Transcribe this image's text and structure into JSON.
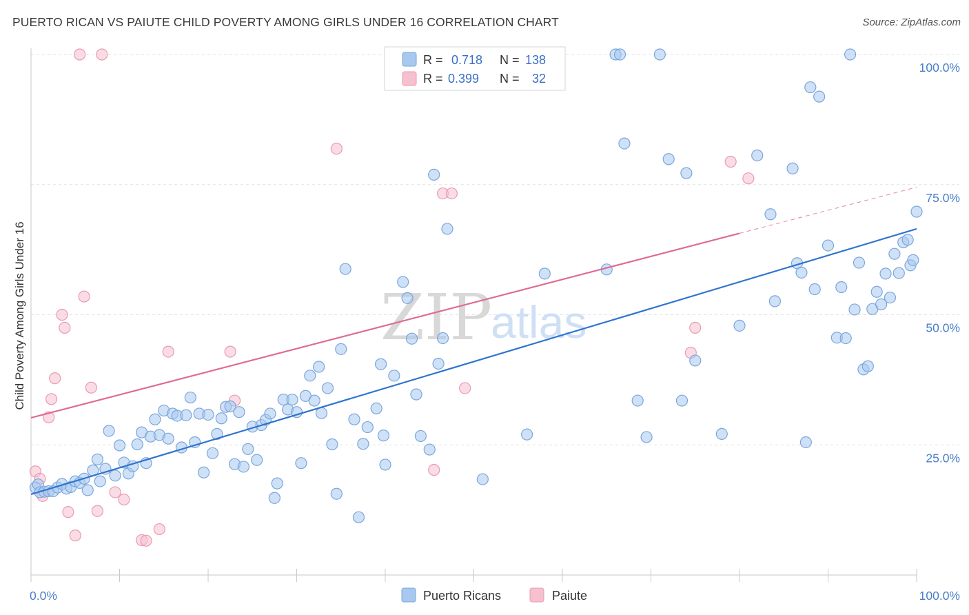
{
  "title": "PUERTO RICAN VS PAIUTE CHILD POVERTY AMONG GIRLS UNDER 16 CORRELATION CHART",
  "source": "Source: ZipAtlas.com",
  "watermark": {
    "part1": "ZIP",
    "part2": "atlas"
  },
  "colors": {
    "blue_fill": "#a8c8f0",
    "blue_stroke": "#7aa6dc",
    "blue_line": "#2f74d0",
    "pink_fill": "#f6c0cf",
    "pink_stroke": "#eb9ab2",
    "pink_line": "#e06a93",
    "tick_text": "#4a7ec8",
    "grid": "#e2e2e2"
  },
  "legend": {
    "rows": [
      {
        "r_label": "R =",
        "r_value": "0.718",
        "n_label": "N =",
        "n_value": "138",
        "color": "blue"
      },
      {
        "r_label": "R =",
        "r_value": "0.399",
        "n_label": "N =",
        "n_value": "32",
        "color": "pink"
      }
    ]
  },
  "bottom_legend": [
    {
      "label": "Puerto Ricans",
      "color": "blue"
    },
    {
      "label": "Paiute",
      "color": "pink"
    }
  ],
  "chart_data": {
    "type": "scatter",
    "title": "PUERTO RICAN VS PAIUTE CHILD POVERTY AMONG GIRLS UNDER 16 CORRELATION CHART",
    "xlabel": "",
    "ylabel": "Child Poverty Among Girls Under 16",
    "xlim": [
      0,
      100
    ],
    "ylim": [
      0,
      100
    ],
    "x_tick_labels": [
      "0.0%",
      "100.0%"
    ],
    "y_tick_labels": [
      {
        "value": 25,
        "label": "25.0%"
      },
      {
        "value": 50,
        "label": "50.0%"
      },
      {
        "value": 75,
        "label": "75.0%"
      },
      {
        "value": 100,
        "label": "100.0%"
      }
    ],
    "grid": "horizontal dashed",
    "legend_placement": "top-center",
    "series": [
      {
        "name": "Puerto Ricans",
        "color": "blue",
        "r": 0.718,
        "n": 138,
        "trend": {
          "x": [
            0,
            100
          ],
          "y": [
            15.5,
            66.5
          ],
          "dashed_from": null
        },
        "points": [
          [
            0.5,
            16.8
          ],
          [
            0.8,
            17.4
          ],
          [
            1.0,
            15.9
          ],
          [
            1.5,
            16.0
          ],
          [
            2.0,
            16.1
          ],
          [
            2.5,
            16.1
          ],
          [
            3.0,
            16.8
          ],
          [
            3.5,
            17.5
          ],
          [
            4.0,
            16.6
          ],
          [
            4.5,
            16.9
          ],
          [
            5.0,
            18.0
          ],
          [
            5.5,
            17.7
          ],
          [
            6.0,
            18.5
          ],
          [
            6.4,
            16.3
          ],
          [
            7.0,
            20.1
          ],
          [
            7.5,
            22.2
          ],
          [
            7.8,
            18.0
          ],
          [
            8.4,
            20.4
          ],
          [
            8.8,
            27.7
          ],
          [
            9.5,
            19.1
          ],
          [
            10.0,
            24.9
          ],
          [
            10.5,
            21.6
          ],
          [
            11.0,
            19.5
          ],
          [
            11.5,
            20.9
          ],
          [
            12.0,
            25.1
          ],
          [
            12.5,
            27.4
          ],
          [
            13.0,
            21.5
          ],
          [
            13.5,
            26.6
          ],
          [
            14.0,
            29.9
          ],
          [
            14.5,
            26.9
          ],
          [
            15.0,
            31.6
          ],
          [
            15.5,
            26.2
          ],
          [
            16.0,
            31.0
          ],
          [
            16.5,
            30.6
          ],
          [
            17.0,
            24.5
          ],
          [
            17.5,
            30.7
          ],
          [
            18.0,
            34.1
          ],
          [
            18.5,
            25.5
          ],
          [
            19.0,
            31.0
          ],
          [
            19.5,
            19.7
          ],
          [
            20.0,
            30.8
          ],
          [
            20.5,
            23.4
          ],
          [
            21.0,
            27.1
          ],
          [
            21.5,
            30.1
          ],
          [
            22.0,
            32.3
          ],
          [
            22.5,
            32.4
          ],
          [
            23.0,
            21.3
          ],
          [
            23.5,
            31.3
          ],
          [
            24.0,
            20.8
          ],
          [
            24.5,
            24.2
          ],
          [
            25.0,
            28.5
          ],
          [
            25.5,
            22.1
          ],
          [
            26.0,
            28.8
          ],
          [
            26.5,
            29.8
          ],
          [
            27.0,
            31.0
          ],
          [
            27.5,
            14.8
          ],
          [
            27.8,
            17.6
          ],
          [
            28.5,
            33.7
          ],
          [
            29.0,
            31.8
          ],
          [
            29.5,
            33.7
          ],
          [
            30.0,
            31.3
          ],
          [
            30.5,
            21.5
          ],
          [
            31.0,
            34.4
          ],
          [
            31.5,
            38.3
          ],
          [
            32.0,
            33.5
          ],
          [
            32.5,
            40.0
          ],
          [
            32.8,
            31.1
          ],
          [
            33.5,
            35.9
          ],
          [
            34.0,
            25.1
          ],
          [
            34.5,
            15.6
          ],
          [
            35.0,
            43.4
          ],
          [
            35.5,
            58.8
          ],
          [
            36.5,
            29.9
          ],
          [
            37.0,
            11.1
          ],
          [
            37.5,
            25.2
          ],
          [
            38.0,
            28.4
          ],
          [
            39.0,
            32.0
          ],
          [
            39.5,
            40.5
          ],
          [
            39.8,
            26.8
          ],
          [
            40.0,
            21.2
          ],
          [
            41.0,
            38.3
          ],
          [
            42.0,
            56.3
          ],
          [
            42.5,
            53.2
          ],
          [
            43.0,
            45.4
          ],
          [
            43.5,
            34.7
          ],
          [
            44.0,
            26.7
          ],
          [
            45.0,
            24.1
          ],
          [
            45.5,
            76.9
          ],
          [
            46.0,
            40.6
          ],
          [
            46.5,
            45.5
          ],
          [
            47.0,
            66.5
          ],
          [
            51.0,
            18.4
          ],
          [
            56.0,
            27.0
          ],
          [
            58.0,
            57.9
          ],
          [
            65.0,
            58.7
          ],
          [
            66.0,
            100.0
          ],
          [
            66.5,
            100.0
          ],
          [
            67.0,
            82.9
          ],
          [
            68.5,
            33.5
          ],
          [
            69.5,
            26.5
          ],
          [
            71.0,
            100.0
          ],
          [
            72.0,
            79.9
          ],
          [
            73.5,
            33.5
          ],
          [
            74.0,
            77.2
          ],
          [
            75.0,
            41.2
          ],
          [
            78.0,
            27.1
          ],
          [
            80.0,
            47.9
          ],
          [
            82.0,
            80.6
          ],
          [
            83.5,
            69.3
          ],
          [
            84.0,
            52.6
          ],
          [
            86.0,
            78.1
          ],
          [
            86.5,
            59.9
          ],
          [
            87.0,
            58.1
          ],
          [
            87.5,
            25.5
          ],
          [
            88.0,
            93.7
          ],
          [
            88.5,
            54.9
          ],
          [
            89.0,
            91.9
          ],
          [
            90.0,
            63.3
          ],
          [
            91.0,
            45.6
          ],
          [
            91.5,
            55.3
          ],
          [
            92.0,
            45.5
          ],
          [
            92.5,
            100.0
          ],
          [
            93.0,
            51.0
          ],
          [
            93.5,
            60.0
          ],
          [
            94.0,
            39.5
          ],
          [
            94.5,
            40.1
          ],
          [
            95.0,
            51.1
          ],
          [
            95.5,
            54.4
          ],
          [
            96.0,
            52.0
          ],
          [
            96.5,
            57.9
          ],
          [
            97.0,
            53.3
          ],
          [
            97.5,
            61.7
          ],
          [
            98.0,
            58.0
          ],
          [
            98.5,
            63.9
          ],
          [
            99.0,
            64.4
          ],
          [
            99.3,
            59.5
          ],
          [
            99.6,
            60.5
          ],
          [
            100.0,
            69.8
          ]
        ]
      },
      {
        "name": "Paiute",
        "color": "pink",
        "r": 0.399,
        "n": 32,
        "trend": {
          "x": [
            0,
            100
          ],
          "y": [
            30.2,
            74.5
          ],
          "solid_until_x": 80
        },
        "points": [
          [
            0.5,
            19.9
          ],
          [
            1.0,
            18.5
          ],
          [
            1.3,
            15.2
          ],
          [
            2.0,
            30.3
          ],
          [
            2.3,
            33.8
          ],
          [
            2.7,
            37.8
          ],
          [
            3.5,
            50.0
          ],
          [
            3.8,
            47.5
          ],
          [
            4.2,
            12.1
          ],
          [
            5.0,
            7.6
          ],
          [
            5.5,
            100.0
          ],
          [
            6.0,
            53.5
          ],
          [
            6.8,
            36.0
          ],
          [
            7.5,
            12.3
          ],
          [
            8.0,
            100.0
          ],
          [
            9.5,
            15.9
          ],
          [
            10.5,
            14.5
          ],
          [
            12.5,
            6.7
          ],
          [
            13.0,
            6.6
          ],
          [
            14.5,
            8.8
          ],
          [
            15.5,
            42.9
          ],
          [
            22.5,
            42.9
          ],
          [
            23.0,
            33.5
          ],
          [
            34.5,
            81.9
          ],
          [
            45.5,
            20.2
          ],
          [
            46.5,
            73.3
          ],
          [
            47.5,
            73.3
          ],
          [
            49.0,
            35.9
          ],
          [
            74.5,
            42.7
          ],
          [
            75.0,
            47.5
          ],
          [
            79.0,
            79.4
          ],
          [
            81.0,
            76.2
          ]
        ]
      }
    ]
  }
}
